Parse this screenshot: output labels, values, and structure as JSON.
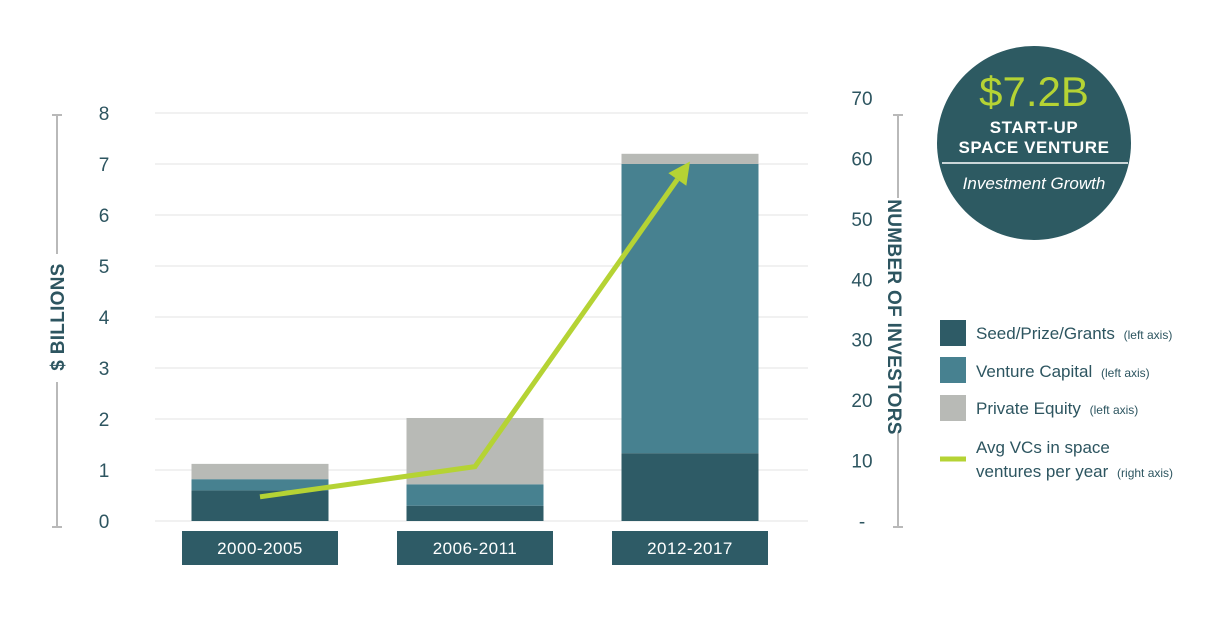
{
  "chart_data": {
    "type": "bar",
    "stacked": true,
    "categories": [
      "2000-2005",
      "2006-2011",
      "2012-2017"
    ],
    "series": [
      {
        "name": "Seed/Prize/Grants",
        "axis_note": "(left axis)",
        "values": [
          0.6,
          0.3,
          1.33
        ],
        "color": "#2e5b66"
      },
      {
        "name": "Venture Capital",
        "axis_note": "(left axis)",
        "values": [
          0.22,
          0.42,
          5.67
        ],
        "color": "#478190"
      },
      {
        "name": "Private Equity",
        "axis_note": "(left axis)",
        "values": [
          0.3,
          1.3,
          0.2
        ],
        "color": "#b8bab6"
      }
    ],
    "line_series": {
      "name_line1": "Avg VCs in space",
      "name_line2": "ventures per year",
      "axis_note": "(right axis)",
      "values": [
        4,
        9,
        59.5
      ],
      "color": "#b5d334"
    },
    "left_axis": {
      "label": "$ BILLIONS",
      "range": [
        0,
        8
      ],
      "ticks": [
        "0",
        "1",
        "2",
        "3",
        "4",
        "5",
        "6",
        "7",
        "8"
      ]
    },
    "right_axis": {
      "label": "NUMBER OF INVESTORS",
      "range": [
        0,
        70
      ],
      "ticks": [
        "-",
        "10",
        "20",
        "30",
        "40",
        "50",
        "60",
        "70"
      ]
    },
    "grid": true,
    "legend_position": "right"
  },
  "badge": {
    "value": "$7.2B",
    "line1": "START-UP",
    "line2": "SPACE VENTURE",
    "subtitle": "Investment Growth",
    "bg_color": "#2d5a62",
    "value_color": "#b5d334"
  },
  "colors": {
    "text": "#2d5560",
    "grid": "#e3e3e3",
    "category_box": "#2e5b66",
    "axis_bracket": "#b9b9b9"
  }
}
